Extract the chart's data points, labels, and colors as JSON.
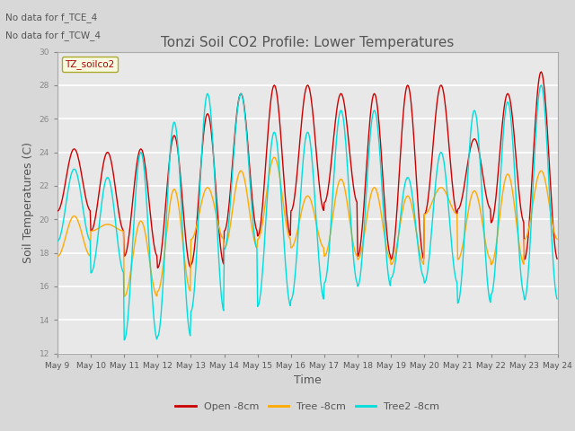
{
  "title": "Tonzi Soil CO2 Profile: Lower Temperatures",
  "xlabel": "Time",
  "ylabel": "Soil Temperatures (C)",
  "annotations": [
    "No data for f_TCE_4",
    "No data for f_TCW_4"
  ],
  "legend_label": "TZ_soilco2",
  "ylim": [
    12,
    30
  ],
  "yticks": [
    12,
    14,
    16,
    18,
    20,
    22,
    24,
    26,
    28,
    30
  ],
  "color_open": "#cc0000",
  "color_tree": "#ffaa00",
  "color_tree2": "#00dddd",
  "legend_entries": [
    "Open -8cm",
    "Tree -8cm",
    "Tree2 -8cm"
  ],
  "plot_bg_color": "#e8e8e8",
  "fig_bg_color": "#d8d8d8",
  "grid_color": "#ffffff",
  "text_color": "#555555",
  "open_data": [
    20.5,
    24.2,
    19.3,
    24.0,
    17.8,
    24.2,
    17.1,
    25.0,
    17.3,
    26.3,
    19.3,
    27.5,
    19.0,
    28.0,
    20.5,
    28.0,
    21.0,
    27.5,
    17.8,
    27.5,
    17.6,
    28.0,
    20.3,
    28.0,
    20.6,
    24.8,
    19.8,
    27.5,
    17.6,
    28.8
  ],
  "tree_data": [
    17.8,
    20.2,
    19.3,
    19.7,
    15.4,
    19.9,
    15.7,
    21.8,
    18.8,
    21.9,
    18.3,
    22.9,
    18.8,
    23.7,
    18.3,
    21.4,
    17.8,
    22.4,
    17.6,
    21.9,
    17.3,
    21.4,
    20.3,
    21.9,
    17.6,
    21.7,
    17.3,
    22.7,
    18.8,
    22.9
  ],
  "tree2_data": [
    18.7,
    23.0,
    16.8,
    22.5,
    12.8,
    24.0,
    13.0,
    25.8,
    14.5,
    27.5,
    18.2,
    27.5,
    14.8,
    25.2,
    15.2,
    25.2,
    16.2,
    26.5,
    16.0,
    26.5,
    16.5,
    22.5,
    16.2,
    24.0,
    15.0,
    26.5,
    15.5,
    27.0,
    15.2,
    28.0
  ]
}
